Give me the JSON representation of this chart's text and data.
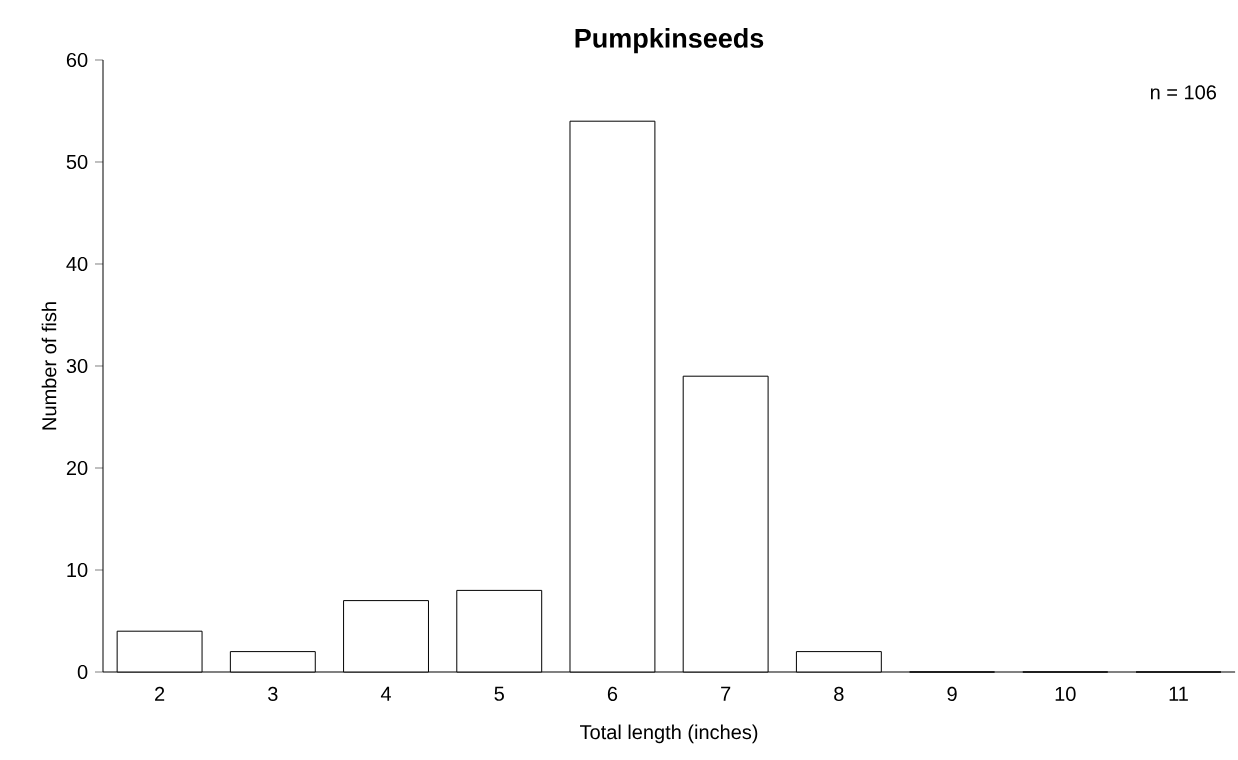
{
  "chart_data": {
    "type": "bar",
    "title": "Pumpkinseeds",
    "xlabel": "Total length (inches)",
    "ylabel": "Number of fish",
    "categories": [
      "2",
      "3",
      "4",
      "5",
      "6",
      "7",
      "8",
      "9",
      "10",
      "11"
    ],
    "values": [
      4,
      2,
      7,
      8,
      54,
      29,
      2,
      0,
      0,
      0
    ],
    "color": "#ffffff",
    "ylim": [
      0,
      60
    ],
    "yticks": [
      0,
      10,
      20,
      30,
      40,
      50,
      60
    ],
    "annotations": [
      "n = 106"
    ]
  }
}
